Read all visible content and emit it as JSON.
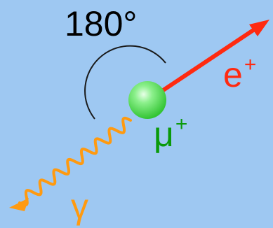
{
  "diagram": {
    "angle_text": "180°",
    "positron": {
      "symbol": "e",
      "charge": "+"
    },
    "muon": {
      "symbol": "μ",
      "charge": "+"
    },
    "photon": {
      "symbol": "γ"
    }
  },
  "colors": {
    "background": "#9ec8f2",
    "angle_text": "#000000",
    "arc": "#1a1a1a",
    "positron": "#ff2a10",
    "muon_label": "#0a9a0a",
    "muon_particle": "#5fe05f",
    "photon": "#ff9a10"
  }
}
